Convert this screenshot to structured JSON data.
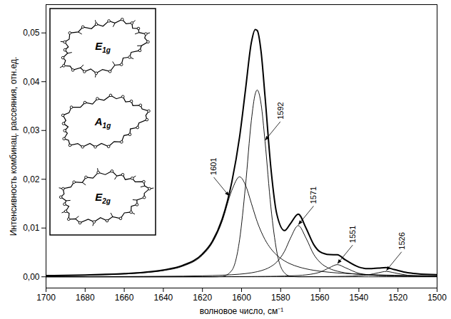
{
  "chart_data": {
    "type": "line",
    "xlabel": "волновое число, см⁻¹",
    "ylabel": "Интенсивность комбинац. рассеяния, отн.ед.",
    "x": [
      1700,
      1680,
      1660,
      1650,
      1640,
      1630,
      1620,
      1615,
      1610,
      1605,
      1601,
      1598,
      1595,
      1593,
      1592,
      1590,
      1588,
      1585,
      1582,
      1578,
      1575,
      1571,
      1567,
      1563,
      1560,
      1555,
      1551,
      1547,
      1540,
      1535,
      1530,
      1526,
      1522,
      1515,
      1510,
      1500
    ],
    "series": [
      {
        "color": "#000000",
        "values": [
          0.00025,
          0.00038,
          0.00065,
          0.00092,
          0.0014,
          0.00235,
          0.00469,
          0.00723,
          0.01173,
          0.0194,
          0.0287,
          0.0383,
          0.048,
          0.0507,
          0.0505,
          0.0461,
          0.037,
          0.0223,
          0.0129,
          0.00947,
          0.01089,
          0.01285,
          0.00997,
          0.00655,
          0.00517,
          0.00456,
          0.00452,
          0.00349,
          0.00199,
          0.00166,
          0.00178,
          0.00189,
          0.0015,
          0.00084,
          0.00063,
          0.00042
        ]
      },
      {
        "color": "#000000",
        "values": [
          0.00021,
          0.00032,
          0.00057,
          0.00082,
          0.00127,
          0.00218,
          0.00445,
          0.00693,
          0.0113,
          0.0177,
          0.0205,
          0.0188,
          0.0151,
          0.0125,
          0.0113,
          0.00928,
          0.00762,
          0.00576,
          0.00445,
          0.00326,
          0.00264,
          0.00205,
          0.00163,
          0.00133,
          0.00115,
          0.00093,
          0.00079,
          0.00068,
          0.00054,
          0.00046,
          0.0004,
          0.00036,
          0.00032,
          0.00027,
          0.00025,
          0.0002
        ]
      },
      {
        "color": "#000000",
        "values": [
          0,
          0,
          0,
          0,
          0,
          0,
          0,
          0,
          6e-05,
          0.0013,
          0.0076,
          0.0186,
          0.032,
          0.0375,
          0.0383,
          0.0354,
          0.0278,
          0.0143,
          0.0052,
          0.00078,
          0.00012,
          0,
          0,
          0,
          0,
          0,
          0,
          0,
          0,
          0,
          0,
          0,
          0,
          0,
          0,
          0
        ]
      },
      {
        "color": "#000000",
        "values": [
          3e-05,
          4e-05,
          6e-05,
          8e-05,
          0.00011,
          0.00014,
          0.00021,
          0.00026,
          0.00033,
          0.00043,
          0.00054,
          0.00066,
          0.00082,
          0.00097,
          0.00105,
          0.00125,
          0.00152,
          0.0021,
          0.00303,
          0.00525,
          0.00791,
          0.0105,
          0.00791,
          0.00455,
          0.00303,
          0.00169,
          0.00115,
          0.00082,
          0.00051,
          0.00038,
          0.0003,
          0.00025,
          0.00021,
          0.00016,
          0.00014,
          0.0001
        ]
      },
      {
        "color": "#000000",
        "values": [
          1e-05,
          1e-05,
          1e-05,
          1e-05,
          2e-05,
          2e-05,
          3e-05,
          3e-05,
          3e-05,
          4e-05,
          5e-05,
          5e-05,
          6e-05,
          7e-05,
          7e-05,
          8e-05,
          9e-05,
          0.0001,
          0.00012,
          0.00016,
          0.0002,
          0.00027,
          0.0004,
          0.00064,
          0.00094,
          0.00188,
          0.0025,
          0.00188,
          0.00072,
          0.0004,
          0.00025,
          0.00018,
          0.00014,
          9e-05,
          7e-05,
          5e-05
        ]
      },
      {
        "color": "#000000",
        "values": [
          0,
          0,
          0,
          0,
          0,
          1e-05,
          1e-05,
          1e-05,
          1e-05,
          1e-05,
          1e-05,
          1e-05,
          1e-05,
          1e-05,
          1e-05,
          1e-05,
          1e-05,
          2e-05,
          2e-05,
          2e-05,
          2e-05,
          3e-05,
          3e-05,
          4e-05,
          4e-05,
          6e-05,
          8e-05,
          0.00011,
          0.00022,
          0.00042,
          0.00083,
          0.0011,
          0.00083,
          0.00032,
          0.00018,
          7e-05
        ]
      }
    ],
    "xlim": [
      1700,
      1500
    ],
    "xticks": [
      1700,
      1680,
      1660,
      1640,
      1620,
      1600,
      1580,
      1560,
      1540,
      1520,
      1500
    ],
    "ylim": [
      -0.0023,
      0.0558
    ],
    "yticks": [
      {
        "value": 0,
        "label": "0,00"
      },
      {
        "value": 0.01,
        "label": "0,01"
      },
      {
        "value": 0.02,
        "label": "0,02"
      },
      {
        "value": 0.03,
        "label": "0,03"
      },
      {
        "value": 0.04,
        "label": "0,04"
      },
      {
        "value": 0.05,
        "label": "0,05"
      }
    ],
    "grid": false,
    "annotations": [
      {
        "text": "1601",
        "x": 1606,
        "y": 0.0164
      },
      {
        "text": "1592",
        "x": 1588,
        "y": 0.0278
      },
      {
        "text": "1571",
        "x": 1571,
        "y": 0.0105
      },
      {
        "text": "1551",
        "x": 1551,
        "y": 0.0025
      },
      {
        "text": "1526",
        "x": 1526,
        "y": 0.0011
      }
    ],
    "inset_labels": [
      "E1g",
      "A1g",
      "E2g"
    ]
  }
}
